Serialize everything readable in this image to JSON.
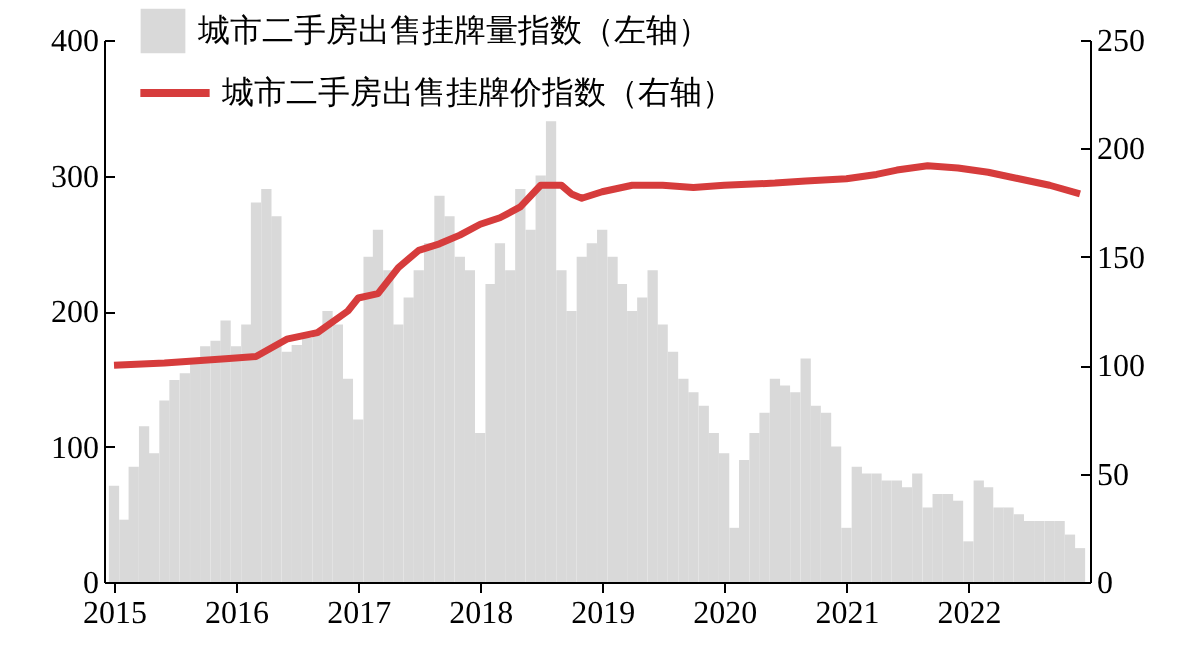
{
  "chart_data": {
    "type": "bar",
    "legend": "top left",
    "grid": false,
    "x": [
      "2015-01",
      "2015-02",
      "2015-03",
      "2015-04",
      "2015-05",
      "2015-06",
      "2015-07",
      "2015-08",
      "2015-09",
      "2015-10",
      "2015-11",
      "2015-12",
      "2016-01",
      "2016-02",
      "2016-03",
      "2016-04",
      "2016-05",
      "2016-06",
      "2016-07",
      "2016-08",
      "2016-09",
      "2016-10",
      "2016-11",
      "2016-12",
      "2017-01",
      "2017-02",
      "2017-03",
      "2017-04",
      "2017-05",
      "2017-06",
      "2017-07",
      "2017-08",
      "2017-09",
      "2017-10",
      "2017-11",
      "2017-12",
      "2018-01",
      "2018-02",
      "2018-03",
      "2018-04",
      "2018-05",
      "2018-06",
      "2018-07",
      "2018-08",
      "2018-09",
      "2018-10",
      "2018-11",
      "2018-12",
      "2019-01",
      "2019-02",
      "2019-03",
      "2019-04",
      "2019-05",
      "2019-06",
      "2019-07",
      "2019-08",
      "2019-09",
      "2019-10",
      "2019-11",
      "2019-12",
      "2020-01",
      "2020-02",
      "2020-03",
      "2020-04",
      "2020-05",
      "2020-06",
      "2020-07",
      "2020-08",
      "2020-09",
      "2020-10",
      "2020-11",
      "2020-12",
      "2021-01",
      "2021-02",
      "2021-03",
      "2021-04",
      "2021-05",
      "2021-06",
      "2021-07",
      "2021-08",
      "2021-09",
      "2021-10",
      "2021-11",
      "2021-12",
      "2022-01",
      "2022-02",
      "2022-03",
      "2022-04",
      "2022-05",
      "2022-06",
      "2022-07",
      "2022-08",
      "2022-09",
      "2022-10",
      "2022-11",
      "2022-12"
    ],
    "xlim": [
      "2015-01",
      "2022-12"
    ],
    "xticks": [
      "2015",
      "2016",
      "2017",
      "2018",
      "2019",
      "2020",
      "2021",
      "2022"
    ],
    "ylim": [
      0,
      400
    ],
    "yticks": [
      0,
      100,
      200,
      300,
      400
    ],
    "y2lim": [
      0,
      250
    ],
    "y2ticks": [
      0,
      50,
      100,
      150,
      200,
      250
    ],
    "series": [
      {
        "name": "城市二手房出售挂牌量指数（左轴）",
        "color": "#d9d9d9",
        "values": [
          71,
          46,
          85,
          115,
          95,
          134,
          149,
          154,
          164,
          174,
          178,
          193,
          174,
          190,
          280,
          290,
          270,
          170,
          175,
          180,
          185,
          200,
          190,
          150,
          120,
          240,
          260,
          230,
          190,
          210,
          230,
          250,
          285,
          270,
          240,
          230,
          110,
          220,
          250,
          230,
          290,
          260,
          300,
          340,
          230,
          200,
          240,
          250,
          260,
          240,
          220,
          200,
          210,
          230,
          190,
          170,
          150,
          140,
          130,
          110,
          95,
          40,
          90,
          110,
          125,
          150,
          145,
          140,
          165,
          130,
          125,
          100,
          40,
          85,
          80,
          80,
          75,
          75,
          70,
          80,
          55,
          65,
          65,
          60,
          30,
          75,
          70,
          55,
          55,
          50,
          45,
          45,
          45,
          45,
          35,
          25
        ]
      },
      {
        "name": "城市二手房出售挂牌价指数（右轴）",
        "type": "line",
        "axis": "y2",
        "color": "#d63c3c",
        "x": [
          "2015-01",
          "2015-06",
          "2015-12",
          "2016-03",
          "2016-06",
          "2016-09",
          "2016-12",
          "2017-01",
          "2017-03",
          "2017-05",
          "2017-07",
          "2017-09",
          "2017-11",
          "2018-01",
          "2018-03",
          "2018-05",
          "2018-07",
          "2018-09",
          "2018-10",
          "2018-11",
          "2019-01",
          "2019-04",
          "2019-07",
          "2019-10",
          "2020-01",
          "2020-06",
          "2020-09",
          "2021-01",
          "2021-04",
          "2021-06",
          "2021-09",
          "2021-12",
          "2022-03",
          "2022-06",
          "2022-09",
          "2022-12"
        ],
        "values": [
          100,
          101,
          103,
          104,
          112,
          115,
          125,
          131,
          133,
          145,
          153,
          156,
          160,
          165,
          168,
          173,
          183,
          183,
          179,
          177,
          180,
          183,
          183,
          182,
          183,
          184,
          185,
          186,
          188,
          190,
          192,
          191,
          189,
          186,
          183,
          179
        ]
      }
    ]
  }
}
